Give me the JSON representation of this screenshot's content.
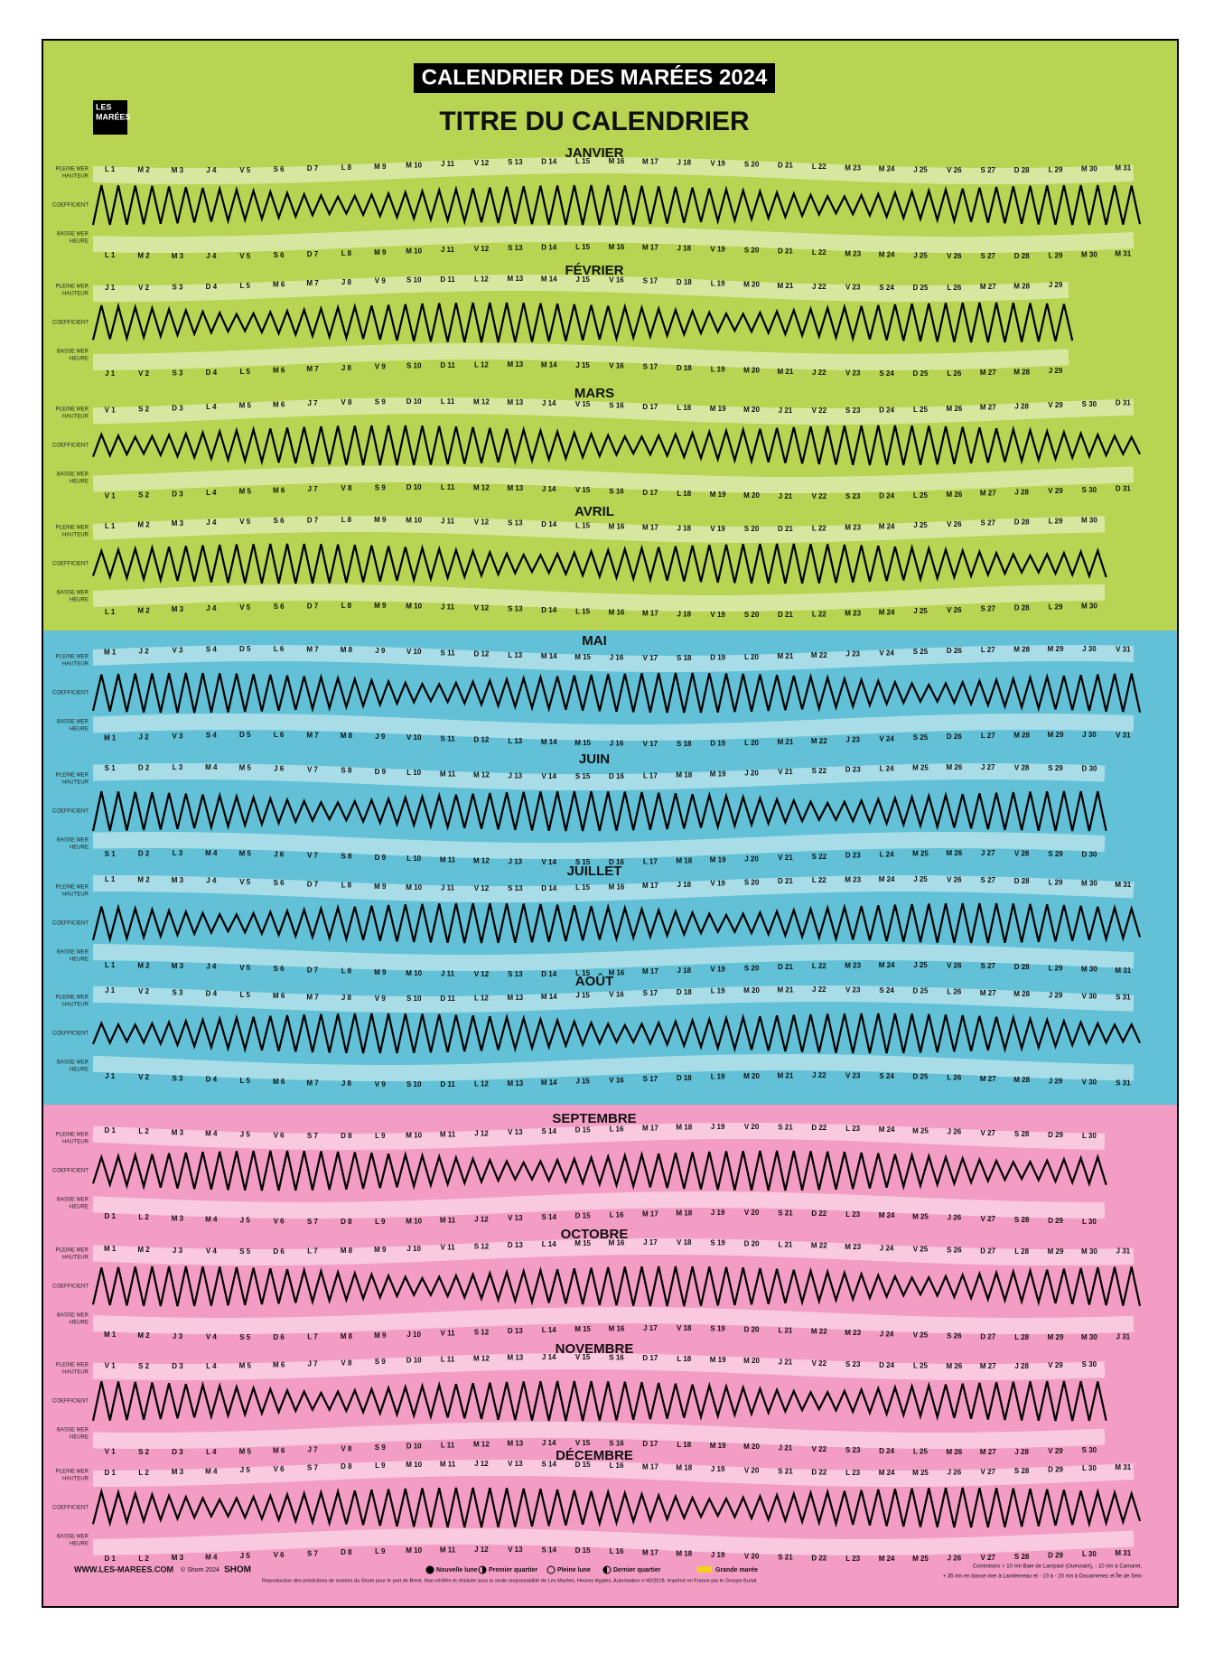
{
  "header": {
    "title": "CALENDRIER DES MARÉES 2024",
    "subtitle": "TITRE DU CALENDRIER",
    "logo": [
      "LES",
      "MARÉES"
    ]
  },
  "row_labels": {
    "high": "PLEINE MER",
    "height": "HAUTEUR",
    "coef": "COEFFICIENT",
    "low": "BASSE MER",
    "time": "HEURE"
  },
  "months": [
    {
      "name": "JANVIER",
      "days": [
        "L 1",
        "M 2",
        "M 3",
        "J 4",
        "V 5",
        "S 6",
        "D 7",
        "L 8",
        "M 9",
        "M 10",
        "J 11",
        "V 12",
        "S 13",
        "D 14",
        "L 15",
        "M 16",
        "M 17",
        "J 18",
        "V 19",
        "S 20",
        "D 21",
        "L 22",
        "M 23",
        "M 24",
        "J 25",
        "V 26",
        "S 27",
        "D 28",
        "L 29",
        "M 30",
        "M 31"
      ]
    },
    {
      "name": "FÉVRIER",
      "days": [
        "J 1",
        "V 2",
        "S 3",
        "D 4",
        "L 5",
        "M 6",
        "M 7",
        "J 8",
        "V 9",
        "S 10",
        "D 11",
        "L 12",
        "M 13",
        "M 14",
        "J 15",
        "V 16",
        "S 17",
        "D 18",
        "L 19",
        "M 20",
        "M 21",
        "J 22",
        "V 23",
        "S 24",
        "D 25",
        "L 26",
        "M 27",
        "M 28",
        "J 29"
      ]
    },
    {
      "name": "MARS",
      "days": [
        "V 1",
        "S 2",
        "D 3",
        "L 4",
        "M 5",
        "M 6",
        "J 7",
        "V 8",
        "S 9",
        "D 10",
        "L 11",
        "M 12",
        "M 13",
        "J 14",
        "V 15",
        "S 16",
        "D 17",
        "L 18",
        "M 19",
        "M 20",
        "J 21",
        "V 22",
        "S 23",
        "D 24",
        "L 25",
        "M 26",
        "M 27",
        "J 28",
        "V 29",
        "S 30",
        "D 31"
      ]
    },
    {
      "name": "AVRIL",
      "days": [
        "L 1",
        "M 2",
        "M 3",
        "J 4",
        "V 5",
        "S 6",
        "D 7",
        "L 8",
        "M 9",
        "M 10",
        "J 11",
        "V 12",
        "S 13",
        "D 14",
        "L 15",
        "M 16",
        "M 17",
        "J 18",
        "V 19",
        "S 20",
        "D 21",
        "L 22",
        "M 23",
        "M 24",
        "J 25",
        "V 26",
        "S 27",
        "D 28",
        "L 29",
        "M 30"
      ]
    },
    {
      "name": "MAI",
      "days": [
        "M 1",
        "J 2",
        "V 3",
        "S 4",
        "D 5",
        "L 6",
        "M 7",
        "M 8",
        "J 9",
        "V 10",
        "S 11",
        "D 12",
        "L 13",
        "M 14",
        "M 15",
        "J 16",
        "V 17",
        "S 18",
        "D 19",
        "L 20",
        "M 21",
        "M 22",
        "J 23",
        "V 24",
        "S 25",
        "D 26",
        "L 27",
        "M 28",
        "M 29",
        "J 30",
        "V 31"
      ]
    },
    {
      "name": "JUIN",
      "days": [
        "S 1",
        "D 2",
        "L 3",
        "M 4",
        "M 5",
        "J 6",
        "V 7",
        "S 8",
        "D 9",
        "L 10",
        "M 11",
        "M 12",
        "J 13",
        "V 14",
        "S 15",
        "D 16",
        "L 17",
        "M 18",
        "M 19",
        "J 20",
        "V 21",
        "S 22",
        "D 23",
        "L 24",
        "M 25",
        "M 26",
        "J 27",
        "V 28",
        "S 29",
        "D 30"
      ]
    },
    {
      "name": "JUILLET",
      "days": [
        "L 1",
        "M 2",
        "M 3",
        "J 4",
        "V 5",
        "S 6",
        "D 7",
        "L 8",
        "M 9",
        "M 10",
        "J 11",
        "V 12",
        "S 13",
        "D 14",
        "L 15",
        "M 16",
        "M 17",
        "J 18",
        "V 19",
        "S 20",
        "D 21",
        "L 22",
        "M 23",
        "M 24",
        "J 25",
        "V 26",
        "S 27",
        "D 28",
        "L 29",
        "M 30",
        "M 31"
      ]
    },
    {
      "name": "AOÛT",
      "days": [
        "J 1",
        "V 2",
        "S 3",
        "D 4",
        "L 5",
        "M 6",
        "M 7",
        "J 8",
        "V 9",
        "S 10",
        "D 11",
        "L 12",
        "M 13",
        "M 14",
        "J 15",
        "V 16",
        "S 17",
        "D 18",
        "L 19",
        "M 20",
        "M 21",
        "J 22",
        "V 23",
        "S 24",
        "D 25",
        "L 26",
        "M 27",
        "M 28",
        "J 29",
        "V 30",
        "S 31"
      ]
    },
    {
      "name": "SEPTEMBRE",
      "days": [
        "D 1",
        "L 2",
        "M 3",
        "M 4",
        "J 5",
        "V 6",
        "S 7",
        "D 8",
        "L 9",
        "M 10",
        "M 11",
        "J 12",
        "V 13",
        "S 14",
        "D 15",
        "L 16",
        "M 17",
        "M 18",
        "J 19",
        "V 20",
        "S 21",
        "D 22",
        "L 23",
        "M 24",
        "M 25",
        "J 26",
        "V 27",
        "S 28",
        "D 29",
        "L 30"
      ]
    },
    {
      "name": "OCTOBRE",
      "days": [
        "M 1",
        "M 2",
        "J 3",
        "V 4",
        "S 5",
        "D 6",
        "L 7",
        "M 8",
        "M 9",
        "J 10",
        "V 11",
        "S 12",
        "D 13",
        "L 14",
        "M 15",
        "M 16",
        "J 17",
        "V 18",
        "S 19",
        "D 20",
        "L 21",
        "M 22",
        "M 23",
        "J 24",
        "V 25",
        "S 26",
        "D 27",
        "L 28",
        "M 29",
        "M 30",
        "J 31"
      ]
    },
    {
      "name": "NOVEMBRE",
      "days": [
        "V 1",
        "S 2",
        "D 3",
        "L 4",
        "M 5",
        "M 6",
        "J 7",
        "V 8",
        "S 9",
        "D 10",
        "L 11",
        "M 12",
        "M 13",
        "J 14",
        "V 15",
        "S 16",
        "D 17",
        "L 18",
        "M 19",
        "M 20",
        "J 21",
        "V 22",
        "S 23",
        "D 24",
        "L 25",
        "M 26",
        "M 27",
        "J 28",
        "V 29",
        "S 30"
      ]
    },
    {
      "name": "DÉCEMBRE",
      "days": [
        "D 1",
        "L 2",
        "M 3",
        "M 4",
        "J 5",
        "V 6",
        "S 7",
        "D 8",
        "L 9",
        "M 10",
        "M 11",
        "J 12",
        "V 13",
        "S 14",
        "D 15",
        "L 16",
        "M 17",
        "M 18",
        "J 19",
        "V 20",
        "S 21",
        "D 22",
        "L 23",
        "M 24",
        "M 25",
        "J 26",
        "V 27",
        "S 28",
        "D 29",
        "L 30",
        "M 31"
      ]
    }
  ],
  "footer": {
    "website": "WWW.LES-MAREES.COM",
    "copyright": "© Shom 2024",
    "shom": "SHOM",
    "notice": "Reproduction des prédictions de marées du Shom pour le port de Brest. Non vérifiée et réalisée sous la seule responsabilité de Les Marées. Heures légales. Autorisation n°40/2018. Imprimé en France par le Groupe Burlat",
    "legend": [
      "Nouvelle lune",
      "Premier quartier",
      "Pleine lune",
      "Dernier quartier",
      "Grande marée"
    ],
    "corrections": [
      "Corrections = 10 mn Baie de Lampaul (Ouessant), - 10 mn à Camaret,",
      "+ 35 mn en basse mer à Landerneau et - 10 à - 20 mn à Douarnenez et Île de Sein"
    ]
  }
}
